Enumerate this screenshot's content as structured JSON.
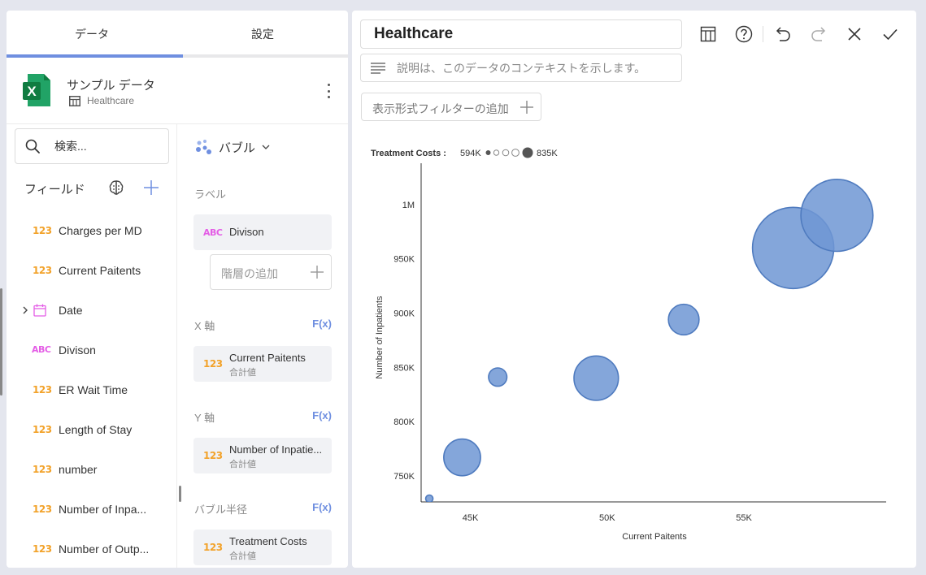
{
  "left_panel": {
    "tabs": [
      {
        "label": "データ"
      },
      {
        "label": "設定"
      }
    ],
    "source": {
      "title": "サンプル データ",
      "sheet": "Healthcare"
    },
    "search": {
      "placeholder": "検索..."
    },
    "fields_label": "フィールド",
    "fields": [
      {
        "type": "123",
        "name": "Charges per MD"
      },
      {
        "type": "123",
        "name": "Current Paitents"
      },
      {
        "type": "date",
        "name": "Date"
      },
      {
        "type": "ABC",
        "name": "Divison"
      },
      {
        "type": "123",
        "name": "ER Wait Time"
      },
      {
        "type": "123",
        "name": "Length of Stay"
      },
      {
        "type": "123",
        "name": "number"
      },
      {
        "type": "123",
        "name": "Number of Inpa..."
      },
      {
        "type": "123",
        "name": "Number of Outp..."
      }
    ],
    "config": {
      "viz_label": "バブル",
      "label_section": "ラベル",
      "label_field": {
        "type": "ABC",
        "name": "Divison"
      },
      "add_level": "階層の追加",
      "x_section": "X 軸",
      "x_field": {
        "type": "123",
        "name": "Current Paitents",
        "agg": "合計値"
      },
      "y_section": "Y 軸",
      "y_field": {
        "type": "123",
        "name": "Number of Inpatie...",
        "agg": "合計値"
      },
      "radius_section": "バブル半径",
      "radius_field": {
        "type": "123",
        "name": "Treatment Costs",
        "agg": "合計値"
      },
      "fx_label": "F(x)"
    }
  },
  "right_panel": {
    "title": "Healthcare",
    "description_placeholder": "説明は、このデータのコンテキストを示します。",
    "filter_button": "表示形式フィルターの追加",
    "toolbar_icons": [
      "grid-icon",
      "help-icon",
      "undo-icon",
      "redo-icon",
      "close-icon",
      "check-icon"
    ]
  },
  "chart_data": {
    "type": "scatter",
    "variant": "bubble",
    "xlabel": "Current Paitents",
    "ylabel": "Number of Inpatients",
    "size_label": "Treatment Costs :",
    "size_legend": {
      "min_label": "594K",
      "max_label": "835K"
    },
    "xlim": [
      43200,
      60200
    ],
    "ylim": [
      726000,
      1044000
    ],
    "x_ticks": [
      45000,
      50000,
      55000
    ],
    "x_tick_labels": [
      "45K",
      "50K",
      "55K"
    ],
    "y_ticks": [
      750000,
      800000,
      850000,
      900000,
      950000,
      1000000
    ],
    "y_tick_labels": [
      "750K",
      "800K",
      "850K",
      "900K",
      "950K",
      "1M"
    ],
    "color": "#6f97d3",
    "stroke": "#4f7bbf",
    "points": [
      {
        "x": 43500,
        "y": 729000,
        "size": 594000
      },
      {
        "x": 44700,
        "y": 767000,
        "size": 690000
      },
      {
        "x": 46000,
        "y": 841000,
        "size": 630000
      },
      {
        "x": 49600,
        "y": 840000,
        "size": 715000
      },
      {
        "x": 52800,
        "y": 894000,
        "size": 670000
      },
      {
        "x": 56800,
        "y": 960000,
        "size": 835000
      },
      {
        "x": 58400,
        "y": 990000,
        "size": 805000
      }
    ]
  }
}
